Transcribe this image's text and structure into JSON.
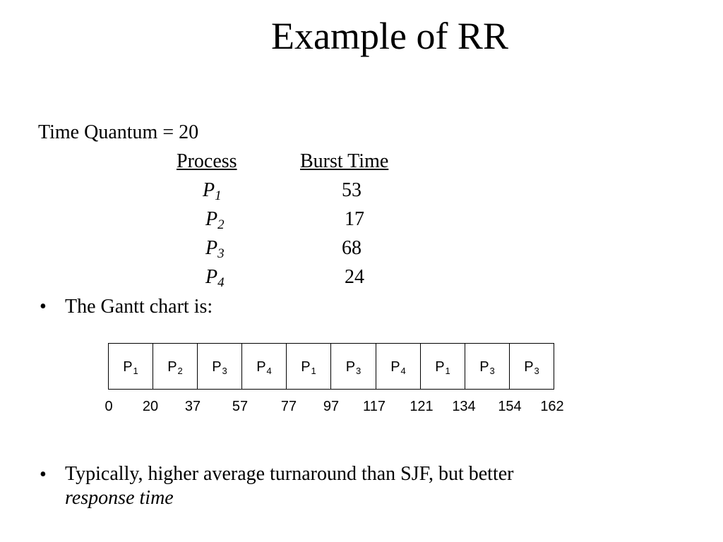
{
  "title": "Example of RR",
  "time_quantum": "Time Quantum = 20",
  "table": {
    "header_process": "Process",
    "header_burst": "Burst Time",
    "rows": [
      {
        "base": "P",
        "sub": "1",
        "burst": "53"
      },
      {
        "base": "P",
        "sub": "2",
        "burst": "17"
      },
      {
        "base": "P",
        "sub": "3",
        "burst": "68"
      },
      {
        "base": "P",
        "sub": "4",
        "burst": "24"
      }
    ]
  },
  "bullets": {
    "symbol": "•",
    "gantt_intro": "The Gantt chart is:",
    "note_main": "Typically, higher average turnaround than SJF, but better",
    "note_emphasis": "response time"
  },
  "gantt": {
    "segments": [
      {
        "base": "P",
        "sub": "1"
      },
      {
        "base": "P",
        "sub": "2"
      },
      {
        "base": "P",
        "sub": "3"
      },
      {
        "base": "P",
        "sub": "4"
      },
      {
        "base": "P",
        "sub": "1"
      },
      {
        "base": "P",
        "sub": "3"
      },
      {
        "base": "P",
        "sub": "4"
      },
      {
        "base": "P",
        "sub": "1"
      },
      {
        "base": "P",
        "sub": "3"
      },
      {
        "base": "P",
        "sub": "3"
      }
    ],
    "ticks": [
      "0",
      "20",
      "37",
      "57",
      "77",
      "97",
      "117",
      "121",
      "134",
      "154",
      "162"
    ]
  }
}
